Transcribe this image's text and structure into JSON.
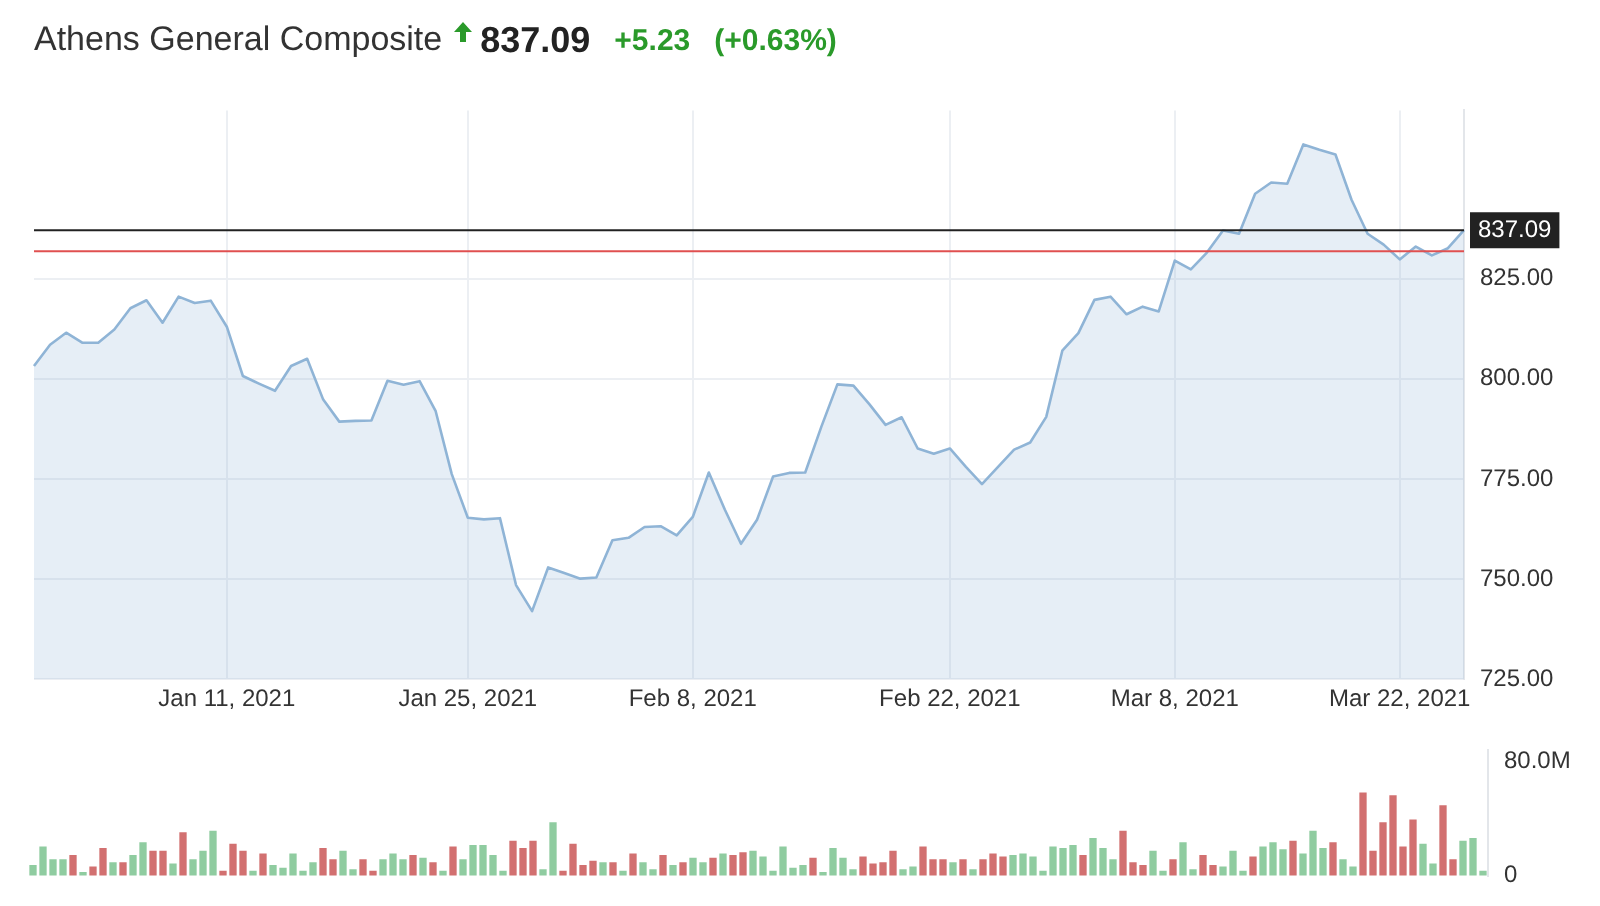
{
  "chart_data": [
    {
      "type": "area",
      "title": "Athens General Composite",
      "annotations": [
        "837.09",
        "+5.23",
        "(+0.63%)"
      ],
      "categories": [
        null,
        null,
        null,
        null,
        null,
        null,
        null,
        null,
        null,
        null,
        null,
        null,
        "Jan 11, 2021",
        null,
        null,
        null,
        null,
        null,
        null,
        null,
        null,
        null,
        null,
        null,
        null,
        null,
        null,
        "Jan 25, 2021",
        null,
        null,
        null,
        null,
        null,
        null,
        null,
        null,
        null,
        null,
        null,
        null,
        null,
        "Feb 8, 2021",
        null,
        null,
        null,
        null,
        null,
        null,
        null,
        null,
        null,
        null,
        null,
        null,
        null,
        null,
        null,
        "Feb 22, 2021",
        null,
        null,
        null,
        null,
        null,
        null,
        null,
        null,
        null,
        null,
        null,
        null,
        null,
        "Mar 8, 2021",
        null,
        null,
        null,
        null,
        null,
        null,
        null,
        null,
        null,
        null,
        null,
        null,
        null,
        "Mar 22, 2021",
        null,
        null,
        null,
        null
      ],
      "values": [
        803.2,
        808.5,
        811.5,
        809,
        809,
        812.3,
        817.6,
        819.6,
        814,
        820.5,
        818.9,
        819.5,
        813,
        800.7,
        798.8,
        797,
        803.2,
        805,
        794.8,
        789.3,
        789.5,
        789.6,
        799.5,
        798.5,
        799.4,
        791.9,
        776.2,
        765.3,
        764.9,
        765.2,
        748.5,
        742,
        752.9,
        751.5,
        750.1,
        750.4,
        759.7,
        760.3,
        763,
        763.2,
        760.9,
        765.5,
        776.6,
        767.3,
        758.8,
        764.8,
        775.6,
        776.5,
        776.6,
        788,
        798.6,
        798.3,
        793.6,
        788.5,
        790.4,
        782.6,
        781.3,
        782.6,
        778,
        773.7,
        778,
        782.3,
        784.1,
        790.5,
        807,
        811.4,
        819.7,
        820.5,
        816.1,
        818,
        816.8,
        829.5,
        827.3,
        831.5,
        837,
        836.2,
        846.2,
        849,
        848.7,
        858.5,
        857.2,
        856,
        844.7,
        836.2,
        833.5,
        829.8,
        833,
        830.8,
        832.6,
        837.09
      ],
      "color": "#8fb4d6",
      "ylim": [
        725,
        867
      ],
      "yticks": [
        {
          "value": 725,
          "label": "725.00"
        },
        {
          "value": 750,
          "label": "750.00"
        },
        {
          "value": 775,
          "label": "775.00"
        },
        {
          "value": 800,
          "label": "800.00"
        },
        {
          "value": 825,
          "label": "825.00"
        }
      ],
      "grid": true,
      "ref_lines": [
        {
          "axis": "y",
          "value": 837.09,
          "label": "837.09",
          "color": "#222222"
        },
        {
          "axis": "y",
          "value": 831.86,
          "color": "#e05050"
        }
      ]
    },
    {
      "type": "bar",
      "categories": [
        null,
        null,
        null,
        null,
        null,
        null,
        null,
        null,
        null,
        null,
        null,
        null,
        null,
        null,
        null,
        null,
        null,
        null,
        null,
        null,
        null,
        null,
        null,
        null,
        null,
        null,
        null,
        null,
        null,
        null,
        null,
        null,
        null,
        null,
        null,
        null,
        null,
        null,
        null,
        null,
        null,
        null,
        null,
        null,
        null,
        null,
        null,
        null,
        null,
        null,
        null,
        null,
        null,
        null,
        null,
        null,
        null,
        null,
        null,
        null,
        null,
        null,
        null,
        null,
        null,
        null,
        null,
        null,
        null,
        null,
        null,
        null,
        null,
        null,
        null,
        null,
        null,
        null,
        null,
        null,
        null,
        null,
        null,
        null,
        null,
        null,
        null,
        null,
        null,
        null,
        null,
        null,
        null,
        null,
        null,
        null,
        null,
        null,
        null,
        null,
        null,
        null,
        null,
        null,
        null,
        null,
        null,
        null,
        null,
        null,
        null,
        null,
        null,
        null,
        null,
        null,
        null,
        null,
        null,
        null,
        null,
        null,
        null,
        null,
        null,
        null,
        null,
        null,
        null,
        null,
        null,
        null,
        null,
        null,
        null,
        null,
        null,
        null,
        null,
        null,
        null,
        null,
        null,
        null,
        null,
        null
      ],
      "values": [
        7,
        20,
        11,
        11,
        14,
        2,
        6,
        19,
        9,
        9,
        14,
        23,
        17,
        17,
        8,
        30,
        11,
        17,
        31,
        3,
        22,
        17,
        3,
        15,
        7,
        5,
        15,
        3,
        9,
        19,
        11,
        17,
        4,
        11,
        3,
        11,
        15,
        11,
        14,
        12,
        9,
        3,
        20,
        11,
        21,
        21,
        14,
        3,
        24,
        19,
        24,
        4,
        37,
        3,
        22,
        7,
        10,
        9,
        9,
        3,
        15,
        9,
        4,
        14,
        7,
        9,
        12,
        9,
        12,
        15,
        14,
        16,
        17,
        13,
        3,
        20,
        5,
        7,
        12,
        2,
        19,
        12,
        4,
        13,
        8,
        9,
        17,
        4,
        6,
        20,
        11,
        11,
        9,
        11,
        4,
        11,
        15,
        13,
        14,
        15,
        13,
        3,
        20,
        19,
        21,
        14,
        26,
        19,
        11,
        31,
        9,
        7,
        17,
        3,
        11,
        23,
        4,
        14,
        7,
        6,
        17,
        3,
        13,
        20,
        23,
        18,
        24,
        15,
        31,
        19,
        23,
        11,
        6,
        58,
        17,
        37,
        56,
        20,
        39,
        22,
        8,
        49,
        11,
        24,
        26,
        3
      ],
      "colors": [
        "#8fcca0",
        "#8fcca0",
        "#8fcca0",
        "#8fcca0",
        "#d27070",
        "#8fcca0",
        "#d27070",
        "#d27070",
        "#8fcca0",
        "#d27070",
        "#8fcca0",
        "#8fcca0",
        "#d27070",
        "#d27070",
        "#8fcca0",
        "#d27070",
        "#8fcca0",
        "#8fcca0",
        "#8fcca0",
        "#d27070",
        "#d27070",
        "#d27070",
        "#8fcca0",
        "#d27070",
        "#8fcca0",
        "#8fcca0",
        "#8fcca0",
        "#8fcca0",
        "#8fcca0",
        "#d27070",
        "#d27070",
        "#8fcca0",
        "#8fcca0",
        "#d27070",
        "#d27070",
        "#8fcca0",
        "#8fcca0",
        "#8fcca0",
        "#d27070",
        "#8fcca0",
        "#d27070",
        "#8fcca0",
        "#d27070",
        "#8fcca0",
        "#8fcca0",
        "#8fcca0",
        "#8fcca0",
        "#8fcca0",
        "#d27070",
        "#d27070",
        "#d27070",
        "#8fcca0",
        "#8fcca0",
        "#d27070",
        "#d27070",
        "#d27070",
        "#d27070",
        "#8fcca0",
        "#d27070",
        "#8fcca0",
        "#d27070",
        "#8fcca0",
        "#8fcca0",
        "#d27070",
        "#8fcca0",
        "#d27070",
        "#8fcca0",
        "#8fcca0",
        "#d27070",
        "#8fcca0",
        "#d27070",
        "#d27070",
        "#8fcca0",
        "#8fcca0",
        "#8fcca0",
        "#8fcca0",
        "#8fcca0",
        "#8fcca0",
        "#d27070",
        "#8fcca0",
        "#8fcca0",
        "#8fcca0",
        "#8fcca0",
        "#d27070",
        "#d27070",
        "#d27070",
        "#d27070",
        "#8fcca0",
        "#8fcca0",
        "#d27070",
        "#d27070",
        "#d27070",
        "#8fcca0",
        "#d27070",
        "#8fcca0",
        "#d27070",
        "#d27070",
        "#d27070",
        "#8fcca0",
        "#8fcca0",
        "#8fcca0",
        "#8fcca0",
        "#8fcca0",
        "#8fcca0",
        "#8fcca0",
        "#d27070",
        "#8fcca0",
        "#8fcca0",
        "#8fcca0",
        "#d27070",
        "#d27070",
        "#d27070",
        "#8fcca0",
        "#8fcca0",
        "#d27070",
        "#8fcca0",
        "#8fcca0",
        "#d27070",
        "#d27070",
        "#8fcca0",
        "#8fcca0",
        "#8fcca0",
        "#d27070",
        "#8fcca0",
        "#8fcca0",
        "#8fcca0",
        "#d27070",
        "#8fcca0",
        "#8fcca0",
        "#8fcca0",
        "#d27070",
        "#8fcca0",
        "#8fcca0",
        "#d27070",
        "#d27070",
        "#d27070",
        "#d27070",
        "#d27070",
        "#d27070",
        "#8fcca0",
        "#8fcca0",
        "#d27070",
        "#d27070",
        "#8fcca0",
        "#8fcca0",
        "#8fcca0"
      ],
      "ylim": [
        0,
        88
      ],
      "yticks": [
        {
          "value": 0,
          "label": "0"
        },
        {
          "value": 80,
          "label": "80.0M"
        }
      ],
      "tick_labels": "y"
    }
  ]
}
